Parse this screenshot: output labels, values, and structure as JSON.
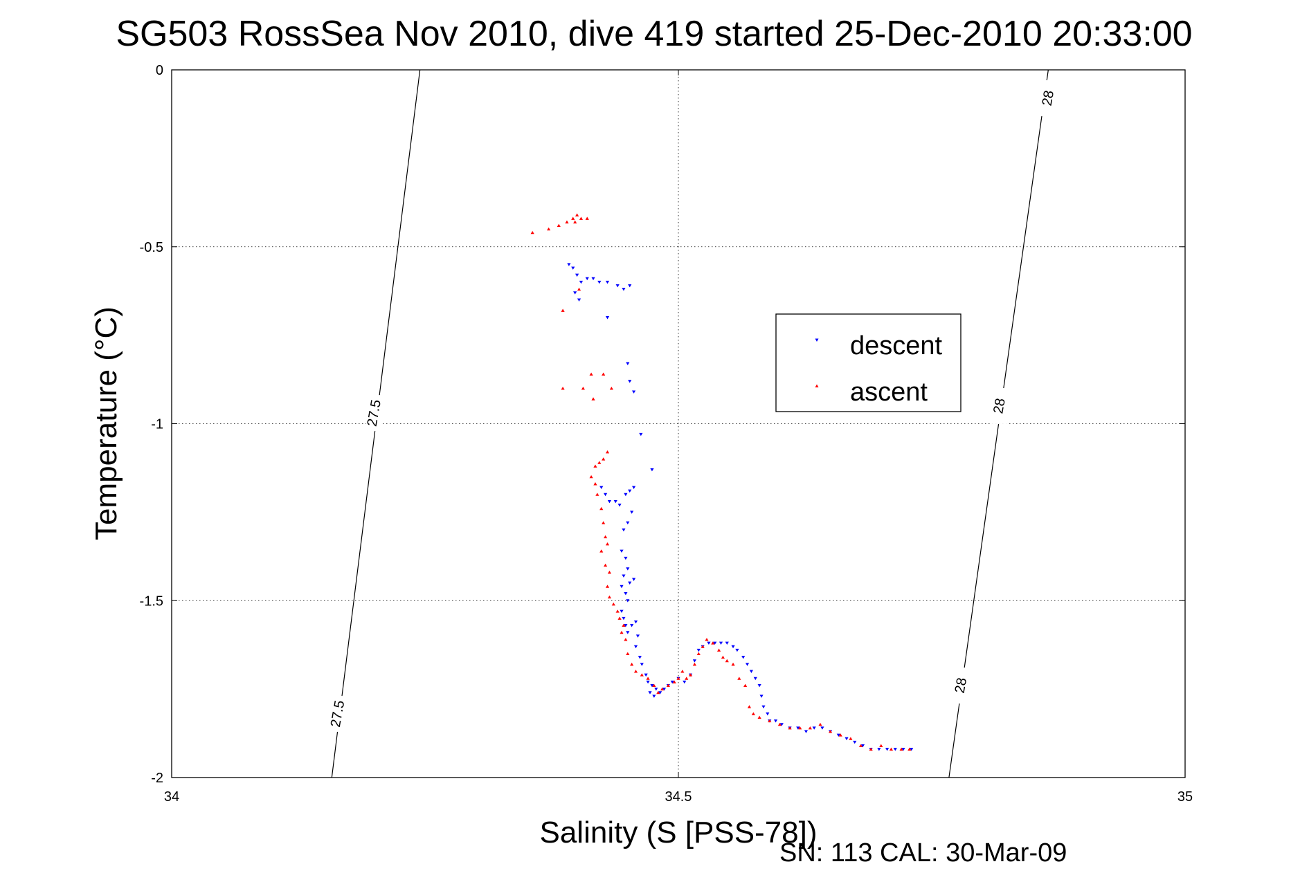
{
  "chart_data": {
    "type": "scatter",
    "title": "SG503 RossSea Nov 2010, dive 419 started 25-Dec-2010 20:33:00",
    "xlabel": "Salinity (S [PSS-78])",
    "ylabel": "Temperature (°C)",
    "xlim": [
      34,
      35
    ],
    "ylim": [
      -2,
      0
    ],
    "x_ticks": [
      34,
      34.5,
      35
    ],
    "x_tick_labels": [
      "34",
      "34.5",
      "35"
    ],
    "y_ticks": [
      0,
      -0.5,
      -1,
      -1.5,
      -2
    ],
    "y_tick_labels": [
      "0",
      "-0.5",
      "-1",
      "-1.5",
      "-2"
    ],
    "grid": true,
    "legend_position": "upper-right",
    "footer": "SN: 113  CAL: 30-Mar-09",
    "series": [
      {
        "name": "descent",
        "color": "#0000ff",
        "marker": "triangle-down",
        "points": [
          [
            34.392,
            -0.55
          ],
          [
            34.396,
            -0.56
          ],
          [
            34.4,
            -0.58
          ],
          [
            34.404,
            -0.6
          ],
          [
            34.398,
            -0.63
          ],
          [
            34.402,
            -0.65
          ],
          [
            34.41,
            -0.59
          ],
          [
            34.416,
            -0.59
          ],
          [
            34.422,
            -0.6
          ],
          [
            34.43,
            -0.6
          ],
          [
            34.44,
            -0.61
          ],
          [
            34.446,
            -0.62
          ],
          [
            34.452,
            -0.61
          ],
          [
            34.43,
            -0.7
          ],
          [
            34.45,
            -0.83
          ],
          [
            34.452,
            -0.88
          ],
          [
            34.456,
            -0.91
          ],
          [
            34.463,
            -1.03
          ],
          [
            34.474,
            -1.13
          ],
          [
            34.424,
            -1.18
          ],
          [
            34.428,
            -1.2
          ],
          [
            34.432,
            -1.22
          ],
          [
            34.438,
            -1.22
          ],
          [
            34.442,
            -1.23
          ],
          [
            34.448,
            -1.2
          ],
          [
            34.452,
            -1.19
          ],
          [
            34.456,
            -1.18
          ],
          [
            34.454,
            -1.25
          ],
          [
            34.45,
            -1.28
          ],
          [
            34.446,
            -1.3
          ],
          [
            34.444,
            -1.36
          ],
          [
            34.448,
            -1.38
          ],
          [
            34.45,
            -1.41
          ],
          [
            34.446,
            -1.43
          ],
          [
            34.444,
            -1.46
          ],
          [
            34.448,
            -1.48
          ],
          [
            34.452,
            -1.45
          ],
          [
            34.456,
            -1.44
          ],
          [
            34.45,
            -1.5
          ],
          [
            34.444,
            -1.53
          ],
          [
            34.446,
            -1.55
          ],
          [
            34.448,
            -1.57
          ],
          [
            34.45,
            -1.59
          ],
          [
            34.454,
            -1.57
          ],
          [
            34.458,
            -1.56
          ],
          [
            34.46,
            -1.6
          ],
          [
            34.458,
            -1.63
          ],
          [
            34.462,
            -1.66
          ],
          [
            34.464,
            -1.68
          ],
          [
            34.468,
            -1.71
          ],
          [
            34.47,
            -1.73
          ],
          [
            34.474,
            -1.74
          ],
          [
            34.478,
            -1.75
          ],
          [
            34.482,
            -1.76
          ],
          [
            34.476,
            -1.77
          ],
          [
            34.472,
            -1.76
          ],
          [
            34.486,
            -1.75
          ],
          [
            34.49,
            -1.74
          ],
          [
            34.494,
            -1.73
          ],
          [
            34.5,
            -1.72
          ],
          [
            34.506,
            -1.73
          ],
          [
            34.512,
            -1.71
          ],
          [
            34.516,
            -1.67
          ],
          [
            34.52,
            -1.64
          ],
          [
            34.524,
            -1.63
          ],
          [
            34.53,
            -1.62
          ],
          [
            34.536,
            -1.62
          ],
          [
            34.542,
            -1.62
          ],
          [
            34.548,
            -1.62
          ],
          [
            34.554,
            -1.63
          ],
          [
            34.558,
            -1.64
          ],
          [
            34.564,
            -1.66
          ],
          [
            34.568,
            -1.68
          ],
          [
            34.572,
            -1.7
          ],
          [
            34.576,
            -1.72
          ],
          [
            34.58,
            -1.74
          ],
          [
            34.582,
            -1.77
          ],
          [
            34.584,
            -1.8
          ],
          [
            34.588,
            -1.82
          ],
          [
            34.59,
            -1.84
          ],
          [
            34.596,
            -1.84
          ],
          [
            34.602,
            -1.85
          ],
          [
            34.61,
            -1.86
          ],
          [
            34.618,
            -1.86
          ],
          [
            34.626,
            -1.87
          ],
          [
            34.634,
            -1.86
          ],
          [
            34.642,
            -1.86
          ],
          [
            34.65,
            -1.87
          ],
          [
            34.658,
            -1.88
          ],
          [
            34.666,
            -1.89
          ],
          [
            34.674,
            -1.9
          ],
          [
            34.682,
            -1.91
          ],
          [
            34.69,
            -1.92
          ],
          [
            34.698,
            -1.92
          ],
          [
            34.706,
            -1.92
          ],
          [
            34.714,
            -1.92
          ],
          [
            34.722,
            -1.92
          ],
          [
            34.73,
            -1.92
          ]
        ]
      },
      {
        "name": "ascent",
        "color": "#ff0000",
        "marker": "triangle-up",
        "points": [
          [
            34.356,
            -0.46
          ],
          [
            34.372,
            -0.45
          ],
          [
            34.382,
            -0.44
          ],
          [
            34.39,
            -0.43
          ],
          [
            34.396,
            -0.42
          ],
          [
            34.4,
            -0.41
          ],
          [
            34.404,
            -0.42
          ],
          [
            34.398,
            -0.43
          ],
          [
            34.41,
            -0.42
          ],
          [
            34.386,
            -0.68
          ],
          [
            34.402,
            -0.62
          ],
          [
            34.386,
            -0.9
          ],
          [
            34.406,
            -0.9
          ],
          [
            34.414,
            -0.86
          ],
          [
            34.416,
            -0.93
          ],
          [
            34.426,
            -0.86
          ],
          [
            34.434,
            -0.9
          ],
          [
            34.418,
            -1.12
          ],
          [
            34.422,
            -1.11
          ],
          [
            34.426,
            -1.1
          ],
          [
            34.43,
            -1.08
          ],
          [
            34.414,
            -1.15
          ],
          [
            34.418,
            -1.17
          ],
          [
            34.42,
            -1.2
          ],
          [
            34.424,
            -1.24
          ],
          [
            34.426,
            -1.28
          ],
          [
            34.428,
            -1.32
          ],
          [
            34.43,
            -1.34
          ],
          [
            34.424,
            -1.36
          ],
          [
            34.428,
            -1.4
          ],
          [
            34.432,
            -1.42
          ],
          [
            34.43,
            -1.46
          ],
          [
            34.432,
            -1.49
          ],
          [
            34.436,
            -1.51
          ],
          [
            34.44,
            -1.53
          ],
          [
            34.442,
            -1.55
          ],
          [
            34.446,
            -1.57
          ],
          [
            34.444,
            -1.59
          ],
          [
            34.448,
            -1.61
          ],
          [
            34.45,
            -1.65
          ],
          [
            34.454,
            -1.68
          ],
          [
            34.458,
            -1.7
          ],
          [
            34.464,
            -1.71
          ],
          [
            34.47,
            -1.72
          ],
          [
            34.476,
            -1.74
          ],
          [
            34.48,
            -1.76
          ],
          [
            34.484,
            -1.75
          ],
          [
            34.49,
            -1.74
          ],
          [
            34.496,
            -1.73
          ],
          [
            34.5,
            -1.72
          ],
          [
            34.504,
            -1.7
          ],
          [
            34.508,
            -1.72
          ],
          [
            34.512,
            -1.71
          ],
          [
            34.516,
            -1.68
          ],
          [
            34.52,
            -1.65
          ],
          [
            34.524,
            -1.63
          ],
          [
            34.528,
            -1.61
          ],
          [
            34.534,
            -1.62
          ],
          [
            34.54,
            -1.64
          ],
          [
            34.544,
            -1.66
          ],
          [
            34.548,
            -1.67
          ],
          [
            34.554,
            -1.68
          ],
          [
            34.56,
            -1.72
          ],
          [
            34.566,
            -1.74
          ],
          [
            34.57,
            -1.8
          ],
          [
            34.574,
            -1.82
          ],
          [
            34.58,
            -1.83
          ],
          [
            34.59,
            -1.84
          ],
          [
            34.6,
            -1.85
          ],
          [
            34.61,
            -1.86
          ],
          [
            34.62,
            -1.86
          ],
          [
            34.63,
            -1.86
          ],
          [
            34.64,
            -1.85
          ],
          [
            34.65,
            -1.87
          ],
          [
            34.66,
            -1.88
          ],
          [
            34.67,
            -1.89
          ],
          [
            34.68,
            -1.91
          ],
          [
            34.69,
            -1.92
          ],
          [
            34.7,
            -1.91
          ],
          [
            34.71,
            -1.92
          ],
          [
            34.72,
            -1.92
          ],
          [
            34.728,
            -1.92
          ]
        ]
      }
    ],
    "contours": [
      {
        "label": "27.5",
        "s_top": 34.245,
        "s_bottom": 34.158
      },
      {
        "label": "28",
        "s_top": 34.865,
        "s_bottom": 34.767
      }
    ],
    "contour_labels": [
      {
        "text": "27.5",
        "s": 34.2,
        "t": -0.97
      },
      {
        "text": "27.5",
        "s": 34.164,
        "t": -1.82
      },
      {
        "text": "28",
        "s": 34.865,
        "t": -0.08
      },
      {
        "text": "28",
        "s": 34.817,
        "t": -0.95
      },
      {
        "text": "28",
        "s": 34.779,
        "t": -1.74
      }
    ]
  }
}
